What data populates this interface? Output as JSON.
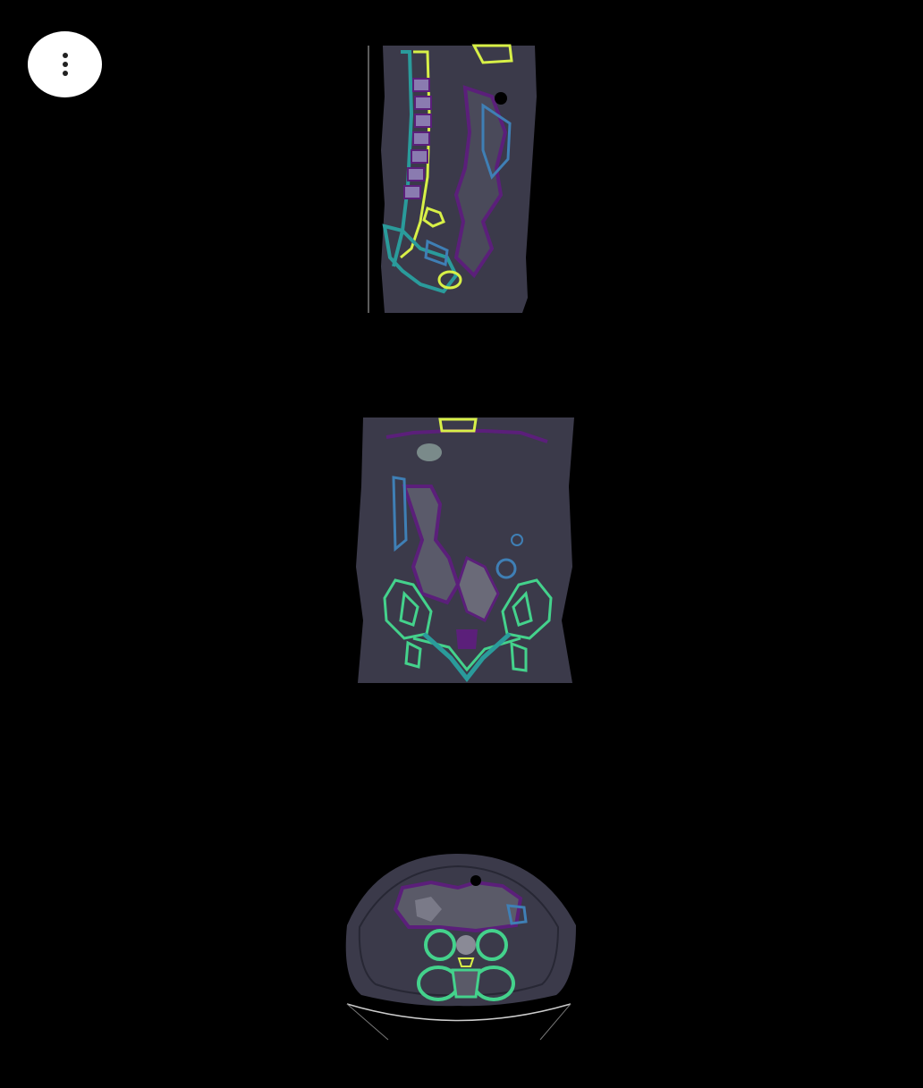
{
  "menu": {
    "icon": "more-vertical-icon",
    "button_color": "#ffffff",
    "icon_color": "#222222"
  },
  "views": [
    {
      "name": "sagittal",
      "kind": "ct-slice"
    },
    {
      "name": "coronal",
      "kind": "ct-slice"
    },
    {
      "name": "axial",
      "kind": "ct-slice"
    }
  ],
  "colors": {
    "background": "#000000",
    "tissue": "#3b3a4a",
    "contour_purple": "#5b1f7a",
    "contour_blue": "#3f7fb5",
    "contour_teal": "#2a9b9b",
    "contour_green": "#44d28c",
    "contour_yellow": "#d8f047"
  }
}
